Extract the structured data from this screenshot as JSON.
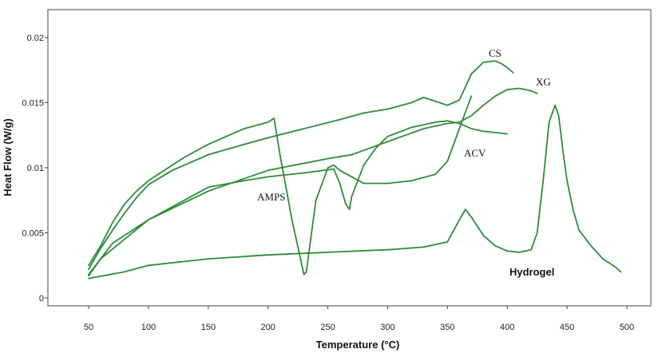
{
  "chart_data": {
    "type": "line",
    "title": "",
    "xlabel": "Temperature (°C)",
    "ylabel": "Heat Flow (W/g)",
    "xlim": [
      50,
      500
    ],
    "ylim": [
      0,
      0.02
    ],
    "x_ticks": [
      "50",
      "100",
      "150",
      "200",
      "250",
      "300",
      "350",
      "400",
      "450",
      "500"
    ],
    "y_ticks": [
      "0",
      "0.005",
      "0.01",
      "0.015",
      "0.02"
    ],
    "grid": false,
    "legend": "none",
    "colors": {
      "line": "#2e8b3a",
      "axis": "#444444",
      "text": "#111111"
    },
    "series": [
      {
        "name": "CS",
        "label_text": "CS",
        "x": [
          50,
          60,
          70,
          80,
          90,
          100,
          120,
          150,
          180,
          200,
          230,
          260,
          280,
          300,
          320,
          330,
          340,
          350,
          360,
          365,
          370,
          380,
          390,
          395,
          400,
          405
        ],
        "y": [
          0.0022,
          0.0038,
          0.0052,
          0.0065,
          0.0077,
          0.0087,
          0.0098,
          0.011,
          0.0118,
          0.0123,
          0.013,
          0.0137,
          0.0142,
          0.0145,
          0.015,
          0.0154,
          0.0151,
          0.0148,
          0.0152,
          0.0162,
          0.0172,
          0.0181,
          0.0182,
          0.018,
          0.0177,
          0.0173
        ]
      },
      {
        "name": "XG",
        "label_text": "XG",
        "x": [
          50,
          70,
          100,
          150,
          200,
          250,
          270,
          300,
          330,
          350,
          360,
          370,
          380,
          390,
          400,
          410,
          420,
          425
        ],
        "y": [
          0.0018,
          0.0042,
          0.006,
          0.0082,
          0.0098,
          0.0107,
          0.011,
          0.012,
          0.013,
          0.0134,
          0.0135,
          0.014,
          0.0148,
          0.0155,
          0.016,
          0.0161,
          0.0159,
          0.0157
        ]
      },
      {
        "name": "ACV",
        "label_text": "ACV",
        "x": [
          50,
          60,
          80,
          100,
          130,
          150,
          180,
          200,
          230,
          255,
          260,
          265,
          268,
          270,
          280,
          290,
          300,
          320,
          340,
          350,
          360,
          370,
          380,
          400
        ],
        "y": [
          0.0017,
          0.003,
          0.0045,
          0.006,
          0.0075,
          0.0085,
          0.009,
          0.0093,
          0.0096,
          0.0099,
          0.0088,
          0.0072,
          0.0068,
          0.0078,
          0.0102,
          0.0115,
          0.0124,
          0.0131,
          0.0135,
          0.0136,
          0.0134,
          0.013,
          0.0128,
          0.0126
        ]
      },
      {
        "name": "AMPS",
        "label_text": "AMPS",
        "x": [
          50,
          60,
          70,
          80,
          90,
          100,
          130,
          150,
          180,
          200,
          205,
          210,
          220,
          230,
          232,
          240,
          250,
          255,
          260,
          280,
          300,
          320,
          340,
          350,
          360,
          370
        ],
        "y": [
          0.0025,
          0.004,
          0.0058,
          0.0072,
          0.0082,
          0.009,
          0.0108,
          0.0118,
          0.013,
          0.0135,
          0.0138,
          0.011,
          0.006,
          0.0018,
          0.002,
          0.0075,
          0.01,
          0.0102,
          0.0098,
          0.0088,
          0.0088,
          0.009,
          0.0095,
          0.0105,
          0.013,
          0.0155
        ]
      },
      {
        "name": "Hydrogel",
        "label_text": "Hydrogel",
        "x": [
          50,
          80,
          100,
          150,
          200,
          250,
          300,
          330,
          350,
          360,
          365,
          370,
          380,
          390,
          400,
          410,
          420,
          425,
          430,
          435,
          440,
          443,
          447,
          450,
          455,
          460,
          470,
          480,
          490,
          495
        ],
        "y": [
          0.0015,
          0.002,
          0.0025,
          0.003,
          0.0033,
          0.0035,
          0.0037,
          0.0039,
          0.0043,
          0.006,
          0.0068,
          0.0062,
          0.0048,
          0.004,
          0.0036,
          0.0035,
          0.0037,
          0.005,
          0.009,
          0.0135,
          0.0148,
          0.014,
          0.011,
          0.009,
          0.0068,
          0.0052,
          0.004,
          0.003,
          0.0024,
          0.002
        ]
      }
    ]
  }
}
